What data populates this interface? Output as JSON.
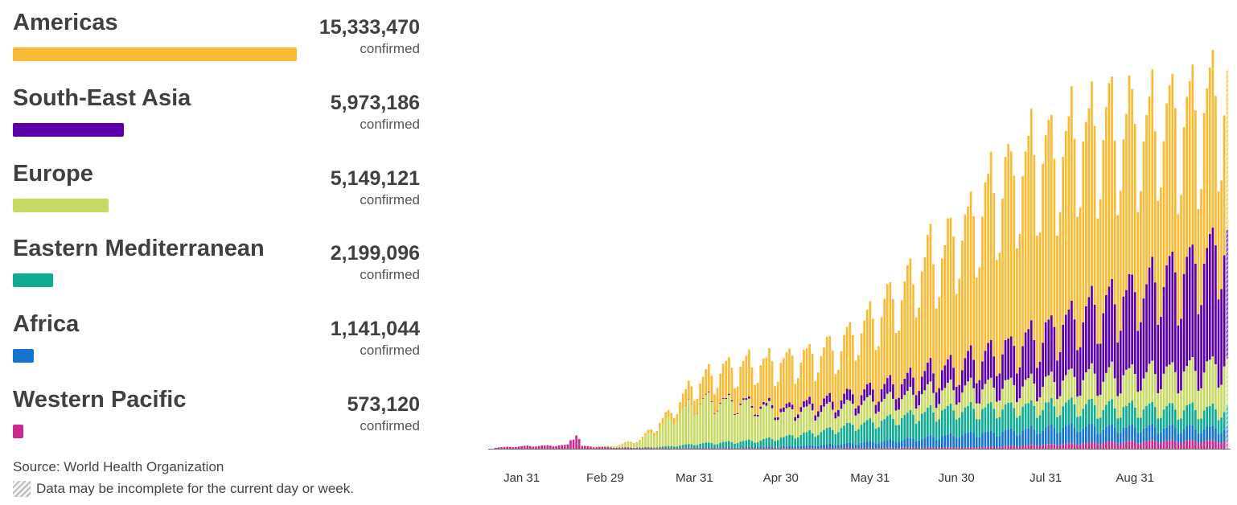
{
  "regions": [
    {
      "name": "Americas",
      "count": "15,333,470",
      "unit": "confirmed",
      "color": "#f9bb34",
      "share": 1.0
    },
    {
      "name": "South-East Asia",
      "count": "5,973,186",
      "unit": "confirmed",
      "color": "#5b00a8",
      "share": 0.39
    },
    {
      "name": "Europe",
      "count": "5,149,121",
      "unit": "confirmed",
      "color": "#c8d964",
      "share": 0.336
    },
    {
      "name": "Eastern Mediterranean",
      "count": "2,199,096",
      "unit": "confirmed",
      "color": "#10ab93",
      "share": 0.143
    },
    {
      "name": "Africa",
      "count": "1,141,044",
      "unit": "confirmed",
      "color": "#1574d2",
      "share": 0.074
    },
    {
      "name": "Western Pacific",
      "count": "573,120",
      "unit": "confirmed",
      "color": "#cb2b8f",
      "share": 0.037
    }
  ],
  "source": "Source: World Health Organization",
  "note": "Data may be incomplete for the current day or week.",
  "chart_data": {
    "type": "bar",
    "stacked": true,
    "x_tick_labels": [
      "Jan 31",
      "Feb 29",
      "Mar 31",
      "Apr 30",
      "May 31",
      "Jun 30",
      "Jul 31",
      "Aug 31"
    ],
    "y_axis_shown": false,
    "grid": false,
    "days": 255,
    "stack_order_bottom_to_top": [
      "Western Pacific",
      "Africa",
      "Eastern Mediterranean",
      "Europe",
      "South-East Asia",
      "Americas"
    ],
    "series": [
      {
        "name": "Western Pacific",
        "color": "#cb2b8f",
        "keypoints": [
          [
            0,
            1000
          ],
          [
            10,
            2000
          ],
          [
            20,
            2500
          ],
          [
            25,
            3000
          ],
          [
            28,
            14000
          ],
          [
            30,
            2000
          ],
          [
            40,
            1000
          ],
          [
            60,
            500
          ],
          [
            100,
            500
          ],
          [
            140,
            700
          ],
          [
            170,
            1200
          ],
          [
            200,
            4000
          ],
          [
            230,
            6000
          ],
          [
            254,
            6000
          ]
        ]
      },
      {
        "name": "Africa",
        "color": "#1574d2",
        "keypoints": [
          [
            0,
            0
          ],
          [
            50,
            0
          ],
          [
            60,
            100
          ],
          [
            80,
            500
          ],
          [
            100,
            1000
          ],
          [
            120,
            3000
          ],
          [
            140,
            6000
          ],
          [
            160,
            10000
          ],
          [
            180,
            12000
          ],
          [
            200,
            13000
          ],
          [
            220,
            11000
          ],
          [
            240,
            10000
          ],
          [
            254,
            10000
          ]
        ]
      },
      {
        "name": "Eastern Mediterranean",
        "color": "#10ab93",
        "keypoints": [
          [
            0,
            0
          ],
          [
            40,
            0
          ],
          [
            55,
            500
          ],
          [
            70,
            3000
          ],
          [
            90,
            5000
          ],
          [
            110,
            10000
          ],
          [
            130,
            16000
          ],
          [
            150,
            20000
          ],
          [
            170,
            19000
          ],
          [
            200,
            17000
          ],
          [
            230,
            15000
          ],
          [
            254,
            15000
          ]
        ]
      },
      {
        "name": "Europe",
        "color": "#c8d964",
        "keypoints": [
          [
            0,
            0
          ],
          [
            30,
            0
          ],
          [
            40,
            1000
          ],
          [
            50,
            5000
          ],
          [
            60,
            20000
          ],
          [
            70,
            33000
          ],
          [
            80,
            32000
          ],
          [
            90,
            27000
          ],
          [
            100,
            20000
          ],
          [
            120,
            16000
          ],
          [
            140,
            15000
          ],
          [
            160,
            16000
          ],
          [
            175,
            17000
          ],
          [
            190,
            18000
          ],
          [
            210,
            24000
          ],
          [
            230,
            27000
          ],
          [
            245,
            32000
          ],
          [
            254,
            36000
          ]
        ]
      },
      {
        "name": "South-East Asia",
        "color": "#5b00a8",
        "keypoints": [
          [
            0,
            0
          ],
          [
            60,
            0
          ],
          [
            70,
            300
          ],
          [
            80,
            700
          ],
          [
            90,
            1500
          ],
          [
            100,
            3000
          ],
          [
            110,
            5000
          ],
          [
            120,
            7000
          ],
          [
            130,
            9000
          ],
          [
            140,
            12000
          ],
          [
            150,
            15000
          ],
          [
            160,
            18000
          ],
          [
            170,
            24000
          ],
          [
            180,
            30000
          ],
          [
            190,
            38000
          ],
          [
            200,
            45000
          ],
          [
            210,
            55000
          ],
          [
            220,
            63000
          ],
          [
            230,
            70000
          ],
          [
            240,
            78000
          ],
          [
            248,
            90000
          ],
          [
            254,
            95000
          ]
        ]
      },
      {
        "name": "Americas",
        "color": "#f9bb34",
        "keypoints": [
          [
            0,
            0
          ],
          [
            35,
            0
          ],
          [
            40,
            100
          ],
          [
            50,
            1000
          ],
          [
            60,
            5000
          ],
          [
            70,
            15000
          ],
          [
            80,
            25000
          ],
          [
            90,
            32000
          ],
          [
            100,
            36000
          ],
          [
            110,
            38000
          ],
          [
            120,
            42000
          ],
          [
            130,
            55000
          ],
          [
            140,
            70000
          ],
          [
            150,
            85000
          ],
          [
            160,
            100000
          ],
          [
            170,
            120000
          ],
          [
            180,
            135000
          ],
          [
            190,
            140000
          ],
          [
            200,
            140000
          ],
          [
            210,
            138000
          ],
          [
            220,
            132000
          ],
          [
            230,
            125000
          ],
          [
            240,
            120000
          ],
          [
            254,
            112000
          ]
        ]
      }
    ]
  }
}
